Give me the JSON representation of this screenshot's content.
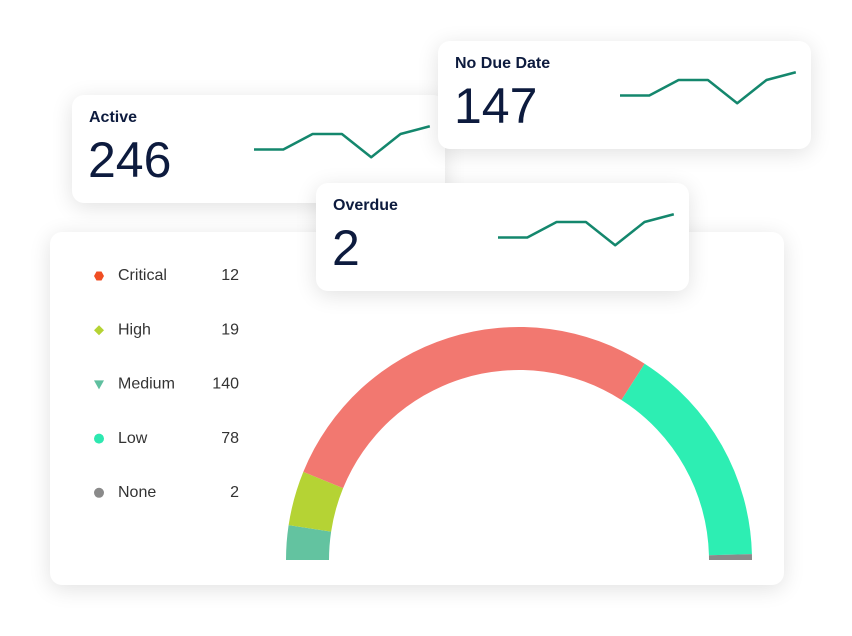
{
  "cards": [
    {
      "title": "Active",
      "value": 246,
      "trend": [
        2,
        2,
        4,
        4,
        1,
        4,
        5
      ]
    },
    {
      "title": "No Due Date",
      "value": 147,
      "trend": [
        2,
        2,
        4,
        4,
        1,
        4,
        5
      ]
    },
    {
      "title": "Overdue",
      "value": 2,
      "trend": [
        2,
        2,
        4,
        4,
        1,
        4,
        5
      ]
    }
  ],
  "chart_data": {
    "type": "gauge",
    "categories": [
      "Critical",
      "High",
      "Medium",
      "Low",
      "None"
    ],
    "values": [
      12,
      19,
      140,
      78,
      2
    ],
    "icon_colors": [
      "#f04e23",
      "#b5d334",
      "#5fbf9f",
      "#2de8b0",
      "#8a8a8a"
    ],
    "arc_colors": [
      "#63c3a0",
      "#b5d334",
      "#f27870",
      "#2deeb3",
      "#8a8a8a"
    ]
  }
}
